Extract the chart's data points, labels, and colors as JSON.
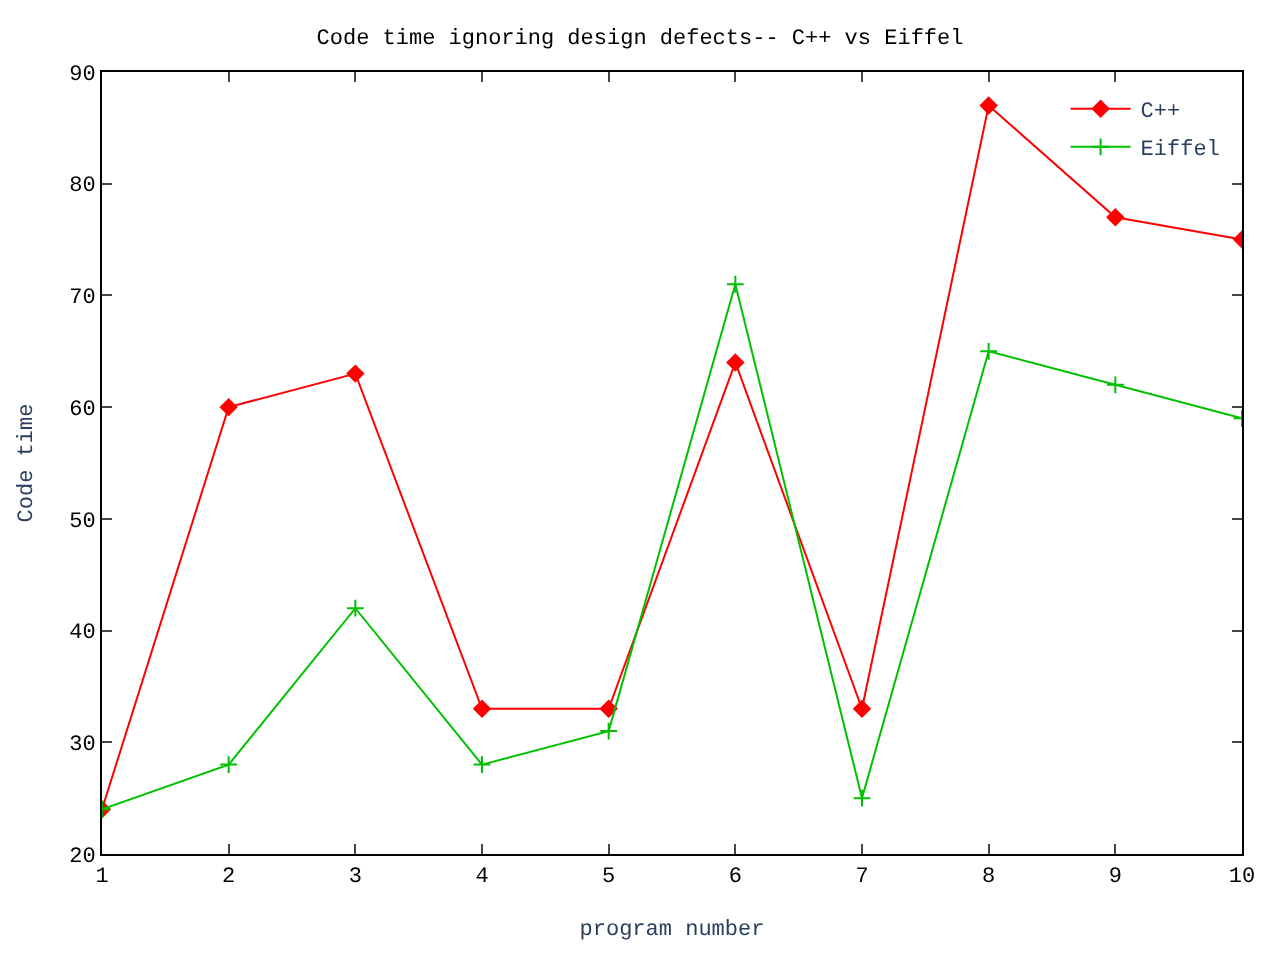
{
  "chart_data": {
    "type": "line",
    "title": "Code time ignoring design defects-- C++ vs Eiffel",
    "xlabel": "program number",
    "ylabel": "Code time",
    "x": [
      1,
      2,
      3,
      4,
      5,
      6,
      7,
      8,
      9,
      10
    ],
    "series": [
      {
        "name": "C++",
        "color": "#ff0000",
        "marker": "diamond",
        "values": [
          24,
          60,
          63,
          33,
          33,
          64,
          33,
          87,
          77,
          75
        ]
      },
      {
        "name": "Eiffel",
        "color": "#00c000",
        "marker": "cross",
        "values": [
          24,
          28,
          42,
          28,
          31,
          71,
          25,
          65,
          62,
          59
        ]
      }
    ],
    "xlim": [
      1,
      10
    ],
    "xticks": [
      1,
      2,
      3,
      4,
      5,
      6,
      7,
      8,
      9,
      10
    ],
    "ylim": [
      20,
      90
    ],
    "yticks": [
      20,
      30,
      40,
      50,
      60,
      70,
      80,
      90
    ],
    "grid": false,
    "legend": "top right",
    "line_style": "solid"
  }
}
